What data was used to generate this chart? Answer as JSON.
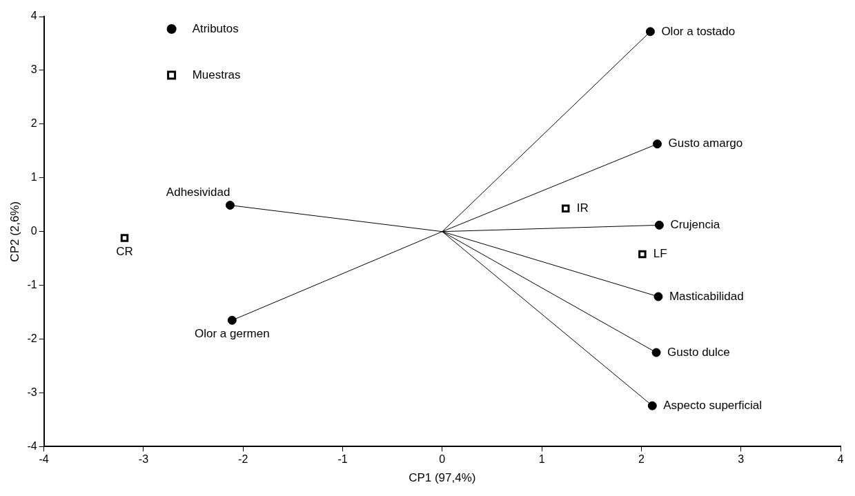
{
  "chart_data": {
    "type": "scatter",
    "xlabel": "CP1 (97,4%)",
    "ylabel": "CP2 (2,6%)",
    "xlim": [
      -4,
      4
    ],
    "xticks": [
      -4,
      -3,
      -2,
      -1,
      0,
      1,
      2,
      3,
      4
    ],
    "ylim": [
      -4,
      4
    ],
    "yticks": [
      -4,
      -3,
      -2,
      -1,
      0,
      1,
      2,
      3,
      4
    ],
    "grid": false,
    "legend": "top left",
    "series": [
      {
        "name": "Atributos",
        "marker": "circle",
        "color": "#000000",
        "x": [
          2.09,
          2.16,
          2.18,
          2.17,
          2.15,
          2.11,
          -2.13,
          -2.11
        ],
        "values": [
          3.72,
          1.63,
          0.12,
          -1.21,
          -2.25,
          -3.24,
          0.49,
          -1.65
        ]
      },
      {
        "name": "Muestras",
        "marker": "square",
        "color": "#000000",
        "x": [
          1.24,
          2.01,
          -3.19
        ],
        "values": [
          0.43,
          -0.42,
          -0.12
        ]
      },
      {
        "type": "line",
        "marker": "none",
        "color": "#000000",
        "x": [
          0,
          2.09,
          null,
          0,
          2.16,
          null,
          0,
          2.18,
          null,
          0,
          2.17,
          null,
          0,
          2.15,
          null,
          0,
          2.11,
          null,
          0,
          -2.13,
          null,
          0,
          -2.11
        ],
        "values": [
          0,
          3.72,
          null,
          0,
          1.63,
          null,
          0,
          0.12,
          null,
          0,
          -1.21,
          null,
          0,
          -2.25,
          null,
          0,
          -3.24,
          null,
          0,
          0.49,
          null,
          0,
          -1.65
        ]
      }
    ],
    "annotations": [
      {
        "text": "Olor a tostado",
        "x": 2.09,
        "y": 3.72
      },
      {
        "text": "Gusto amargo",
        "x": 2.16,
        "y": 1.63
      },
      {
        "text": "Crujencia",
        "x": 2.18,
        "y": 0.12
      },
      {
        "text": "Masticabilidad",
        "x": 2.17,
        "y": -1.21
      },
      {
        "text": "Gusto dulce",
        "x": 2.15,
        "y": -2.25
      },
      {
        "text": "Aspecto superficial",
        "x": 2.11,
        "y": -3.24
      },
      {
        "text": "Adhesividad",
        "x": -2.13,
        "y": 0.49
      },
      {
        "text": "Olor a germen",
        "x": -2.11,
        "y": -1.65
      },
      {
        "text": "IR",
        "x": 1.24,
        "y": 0.43
      },
      {
        "text": "LF",
        "x": 2.01,
        "y": -0.42
      },
      {
        "text": "CR",
        "x": -3.19,
        "y": -0.12
      }
    ]
  }
}
